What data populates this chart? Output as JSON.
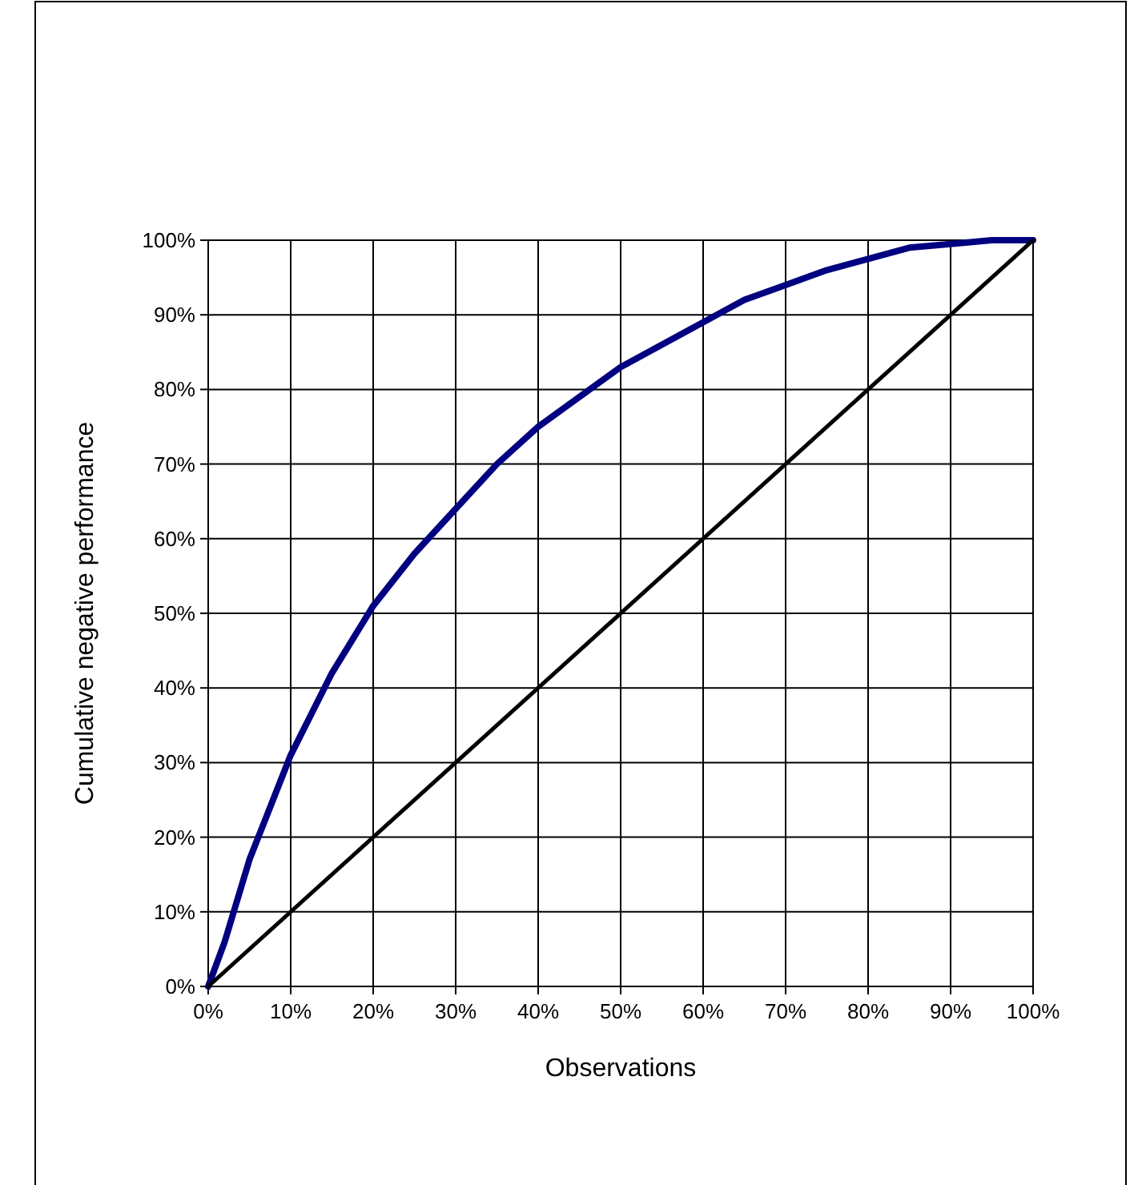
{
  "chart_data": {
    "type": "line",
    "xlabel": "Observations",
    "ylabel": "Cumulative negative performance",
    "xlim": [
      0,
      100
    ],
    "ylim": [
      0,
      100
    ],
    "xticks": [
      {
        "value": 0,
        "label": "0%"
      },
      {
        "value": 10,
        "label": "10%"
      },
      {
        "value": 20,
        "label": "20%"
      },
      {
        "value": 30,
        "label": "30%"
      },
      {
        "value": 40,
        "label": "40%"
      },
      {
        "value": 50,
        "label": "50%"
      },
      {
        "value": 60,
        "label": "60%"
      },
      {
        "value": 70,
        "label": "70%"
      },
      {
        "value": 80,
        "label": "80%"
      },
      {
        "value": 90,
        "label": "90%"
      },
      {
        "value": 100,
        "label": "100%"
      }
    ],
    "yticks": [
      {
        "value": 0,
        "label": "0%"
      },
      {
        "value": 10,
        "label": "10%"
      },
      {
        "value": 20,
        "label": "20%"
      },
      {
        "value": 30,
        "label": "30%"
      },
      {
        "value": 40,
        "label": "40%"
      },
      {
        "value": 50,
        "label": "50%"
      },
      {
        "value": 60,
        "label": "60%"
      },
      {
        "value": 70,
        "label": "70%"
      },
      {
        "value": 80,
        "label": "80%"
      },
      {
        "value": 90,
        "label": "90%"
      },
      {
        "value": 100,
        "label": "100%"
      }
    ],
    "grid": true,
    "series": [
      {
        "color": "#000080",
        "x": [
          0,
          2,
          5,
          10,
          15,
          20,
          25,
          30,
          35,
          40,
          45,
          50,
          55,
          60,
          65,
          70,
          75,
          80,
          85,
          90,
          95,
          100
        ],
        "values": [
          0,
          6,
          17,
          31,
          42,
          51,
          58,
          64,
          70,
          75,
          79,
          83,
          86,
          89,
          92,
          94,
          96,
          97.5,
          99,
          99.5,
          100,
          100
        ]
      },
      {
        "color": "#000000",
        "x": [
          0,
          100
        ],
        "values": [
          0,
          100
        ]
      }
    ]
  }
}
